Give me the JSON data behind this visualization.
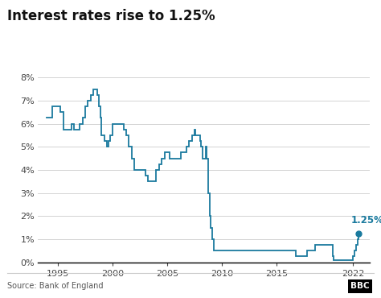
{
  "title": "Interest rates rise to 1.25%",
  "source": "Source: Bank of England",
  "line_color": "#1a7a9e",
  "background_color": "#ffffff",
  "annotation_text": "1.25%",
  "annotation_color": "#1a7a9e",
  "ylim": [
    0,
    8
  ],
  "yticks": [
    0,
    1,
    2,
    3,
    4,
    5,
    6,
    7,
    8
  ],
  "xlim": [
    1993.2,
    2023.5
  ],
  "xticks": [
    1995,
    2000,
    2005,
    2010,
    2015,
    2022
  ],
  "data": [
    [
      1994.0,
      6.25
    ],
    [
      1994.5,
      6.75
    ],
    [
      1995.0,
      6.75
    ],
    [
      1995.25,
      6.5
    ],
    [
      1995.5,
      5.75
    ],
    [
      1996.0,
      5.75
    ],
    [
      1996.25,
      6.0
    ],
    [
      1996.5,
      5.75
    ],
    [
      1997.0,
      6.0
    ],
    [
      1997.25,
      6.25
    ],
    [
      1997.5,
      6.75
    ],
    [
      1997.75,
      7.0
    ],
    [
      1998.0,
      7.25
    ],
    [
      1998.25,
      7.5
    ],
    [
      1998.5,
      7.5
    ],
    [
      1998.6,
      7.25
    ],
    [
      1998.75,
      6.75
    ],
    [
      1998.9,
      6.25
    ],
    [
      1999.0,
      5.5
    ],
    [
      1999.1,
      5.5
    ],
    [
      1999.25,
      5.25
    ],
    [
      1999.5,
      5.0
    ],
    [
      1999.6,
      5.25
    ],
    [
      1999.75,
      5.5
    ],
    [
      2000.0,
      6.0
    ],
    [
      2000.25,
      6.0
    ],
    [
      2000.5,
      6.0
    ],
    [
      2001.0,
      5.75
    ],
    [
      2001.25,
      5.5
    ],
    [
      2001.5,
      5.0
    ],
    [
      2001.75,
      4.5
    ],
    [
      2002.0,
      4.0
    ],
    [
      2002.5,
      4.0
    ],
    [
      2003.0,
      3.75
    ],
    [
      2003.25,
      3.5
    ],
    [
      2003.5,
      3.5
    ],
    [
      2004.0,
      4.0
    ],
    [
      2004.25,
      4.25
    ],
    [
      2004.5,
      4.5
    ],
    [
      2004.75,
      4.75
    ],
    [
      2005.0,
      4.75
    ],
    [
      2005.25,
      4.5
    ],
    [
      2005.5,
      4.5
    ],
    [
      2006.0,
      4.5
    ],
    [
      2006.25,
      4.75
    ],
    [
      2006.5,
      4.75
    ],
    [
      2006.75,
      5.0
    ],
    [
      2007.0,
      5.25
    ],
    [
      2007.25,
      5.5
    ],
    [
      2007.5,
      5.75
    ],
    [
      2007.6,
      5.5
    ],
    [
      2007.75,
      5.5
    ],
    [
      2008.0,
      5.25
    ],
    [
      2008.1,
      5.0
    ],
    [
      2008.25,
      4.5
    ],
    [
      2008.5,
      5.0
    ],
    [
      2008.6,
      4.5
    ],
    [
      2008.75,
      3.0
    ],
    [
      2008.9,
      2.0
    ],
    [
      2009.0,
      1.5
    ],
    [
      2009.1,
      1.0
    ],
    [
      2009.25,
      0.5
    ],
    [
      2016.5,
      0.5
    ],
    [
      2016.75,
      0.25
    ],
    [
      2017.75,
      0.5
    ],
    [
      2018.5,
      0.75
    ],
    [
      2020.1,
      0.75
    ],
    [
      2020.15,
      0.25
    ],
    [
      2020.2,
      0.1
    ],
    [
      2021.9,
      0.1
    ],
    [
      2021.95,
      0.25
    ],
    [
      2022.1,
      0.5
    ],
    [
      2022.3,
      0.75
    ],
    [
      2022.4,
      1.0
    ],
    [
      2022.5,
      1.25
    ]
  ],
  "endpoint_x": 2022.5,
  "endpoint_y": 1.25,
  "figsize": [
    4.74,
    3.7
  ],
  "dpi": 100
}
